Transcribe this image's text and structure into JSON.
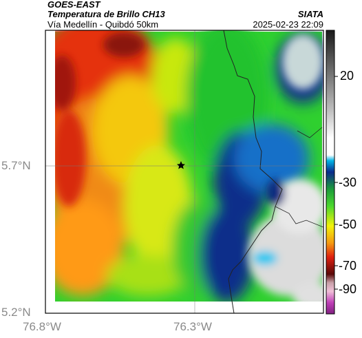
{
  "header": {
    "satellite": "GOES-EAST",
    "product": "Temperatura de Brillo CH13",
    "region": "Vía Medellín - Quibdó 50km",
    "org": "SIATA",
    "datetime": "2025-02-23 22:09"
  },
  "axes": {
    "lat_labels": [
      "5.7°N",
      "5.2°N"
    ],
    "lon_labels": [
      "76.8°W",
      "76.3°W"
    ]
  },
  "colorbar": {
    "tick_labels": [
      "20",
      "-30",
      "-50",
      "-70",
      "-90"
    ],
    "tick_values": [
      20,
      -30,
      -50,
      -70,
      -90
    ],
    "range": [
      -95,
      50
    ]
  },
  "marker": {
    "icon": "star-icon"
  }
}
